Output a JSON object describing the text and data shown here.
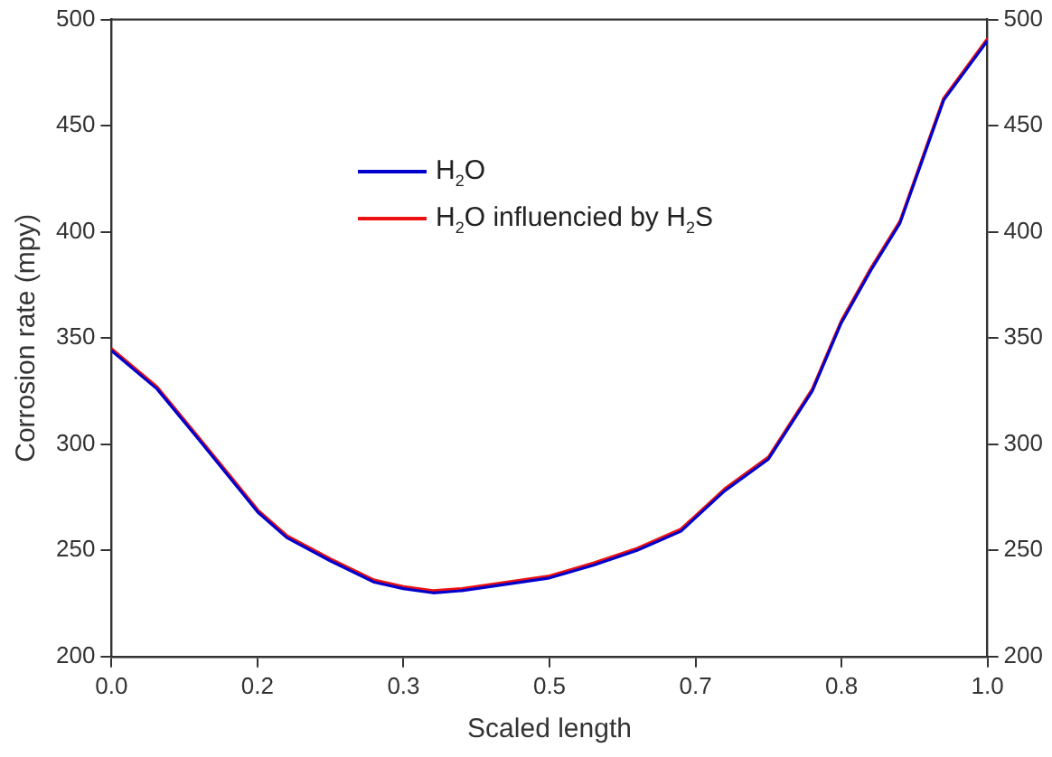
{
  "chart_data": {
    "type": "line",
    "xlabel": "Scaled length",
    "ylabel": "Corrosion rate (mpy)",
    "x": [
      0,
      0.052,
      0.1,
      0.167,
      0.2,
      0.25,
      0.3,
      0.333,
      0.367,
      0.4,
      0.45,
      0.5,
      0.55,
      0.6,
      0.65,
      0.7,
      0.75,
      0.8,
      0.833,
      0.867,
      0.9,
      0.95,
      1
    ],
    "series": [
      {
        "name": "H$_{2}$O",
        "color": "#0000cc",
        "values": [
          344,
          326,
          302,
          268,
          256,
          245,
          235,
          232,
          230,
          231,
          234,
          237,
          243,
          250,
          259,
          278,
          293,
          325,
          357,
          382,
          404,
          462,
          490
        ]
      },
      {
        "name": "H$_{2}$O influencied by H$_{2}$S",
        "color": "#ee1111",
        "values": [
          345,
          327,
          303,
          269,
          257,
          246,
          236,
          233,
          231,
          232,
          235,
          238,
          244,
          251,
          260,
          279,
          294,
          326,
          358,
          383,
          405,
          463,
          491
        ]
      }
    ],
    "xlim": [
      0,
      1
    ],
    "xticks": [
      {
        "value": 0,
        "label": "0.0"
      },
      {
        "value": 0.16667,
        "label": "0.2"
      },
      {
        "value": 0.33333,
        "label": "0.3"
      },
      0.5,
      {
        "value": 0.66667,
        "label": "0.7"
      },
      {
        "value": 0.83333,
        "label": "0.8"
      },
      {
        "value": 1,
        "label": "1.0"
      }
    ],
    "ylim": [
      200,
      500
    ],
    "yticks": [
      200,
      250,
      300,
      350,
      400,
      450,
      500
    ],
    "y2lim": [
      200,
      500
    ],
    "y2ticks": [
      200,
      250,
      300,
      350,
      400,
      450,
      500
    ],
    "grid": false,
    "legend": "top left",
    "marker": "none",
    "line_style": "solid"
  }
}
